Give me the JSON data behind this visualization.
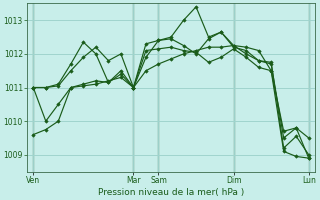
{
  "background_color": "#c8eeea",
  "grid_color": "#a0d4ce",
  "line_color": "#1a5c1a",
  "marker_color": "#1a5c1a",
  "xlabel": "Pression niveau de la mer( hPa )",
  "ylim": [
    1008.5,
    1013.5
  ],
  "yticks": [
    1009,
    1010,
    1011,
    1012,
    1013
  ],
  "xtick_labels": [
    "Ven",
    "Mar",
    "Sam",
    "Dim",
    "Lun"
  ],
  "xtick_positions": [
    0,
    8,
    10,
    16,
    22
  ],
  "vline_positions": [
    0,
    8,
    10,
    16,
    22
  ],
  "n_points": 23,
  "series": [
    [
      1009.6,
      1009.75,
      1010.0,
      1011.0,
      1011.05,
      1011.1,
      1011.2,
      1011.3,
      1011.0,
      1011.5,
      1011.7,
      1011.85,
      1012.0,
      1012.1,
      1012.2,
      1012.2,
      1012.25,
      1012.2,
      1012.1,
      1011.5,
      1009.1,
      1008.95,
      1008.9
    ],
    [
      1011.0,
      1011.0,
      1011.1,
      1011.7,
      1012.35,
      1012.0,
      1011.15,
      1011.5,
      1011.0,
      1011.9,
      1012.4,
      1012.5,
      1013.0,
      1013.4,
      1012.5,
      1012.65,
      1012.2,
      1012.1,
      1011.8,
      1011.75,
      1009.2,
      1009.55,
      1009.0
    ],
    [
      1011.0,
      1011.0,
      1011.05,
      1011.5,
      1011.9,
      1012.2,
      1011.8,
      1012.0,
      1011.0,
      1012.3,
      1012.4,
      1012.45,
      1012.25,
      1012.0,
      1012.45,
      1012.65,
      1012.25,
      1012.0,
      1011.8,
      1011.7,
      1009.5,
      1009.8,
      1008.9
    ],
    [
      1011.0,
      1010.0,
      1010.5,
      1011.0,
      1011.1,
      1011.2,
      1011.15,
      1011.4,
      1011.0,
      1012.1,
      1012.15,
      1012.2,
      1012.1,
      1012.05,
      1011.75,
      1011.9,
      1012.15,
      1011.9,
      1011.6,
      1011.5,
      1009.7,
      1009.8,
      1009.5
    ]
  ]
}
